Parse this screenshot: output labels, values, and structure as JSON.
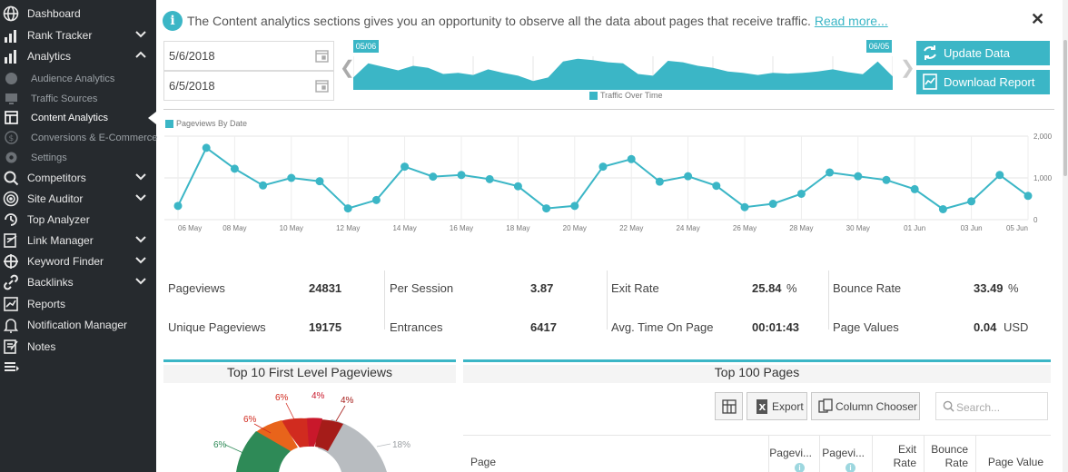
{
  "sidebar": {
    "items": [
      {
        "label": "Dashboard"
      },
      {
        "label": "Rank Tracker"
      },
      {
        "label": "Analytics"
      },
      {
        "label": "Audience Analytics"
      },
      {
        "label": "Traffic Sources"
      },
      {
        "label": "Content Analytics"
      },
      {
        "label": "Conversions & E-Commerce"
      },
      {
        "label": "Settings"
      },
      {
        "label": "Competitors"
      },
      {
        "label": "Site Auditor"
      },
      {
        "label": "Top Analyzer"
      },
      {
        "label": "Link Manager"
      },
      {
        "label": "Keyword Finder"
      },
      {
        "label": "Backlinks"
      },
      {
        "label": "Reports"
      },
      {
        "label": "Notification Manager"
      },
      {
        "label": "Notes"
      }
    ]
  },
  "notice": {
    "text": "The Content analytics sections gives you an opportunity to observe all the data about pages that receive traffic.",
    "link": "Read more...",
    "close": "✕"
  },
  "dates": {
    "start": "5/6/2018",
    "end": "6/5/2018"
  },
  "overview": {
    "start_flag": "05/06",
    "end_flag": "06/05",
    "legend": "Traffic Over Time"
  },
  "actions": {
    "update": "Update Data",
    "download": "Download Report"
  },
  "colors": {
    "accent": "#3bb6c6",
    "sidebar": "#262a2e",
    "pie_red": "#d12b1f",
    "pie_orange": "#e8641b",
    "pie_green": "#2e8a57",
    "pie_gray": "#b8bcc0"
  },
  "chart_data": {
    "type": "line",
    "legend": "Pageviews By Date",
    "x": [
      "06 May",
      "07 May",
      "08 May",
      "09 May",
      "10 May",
      "11 May",
      "12 May",
      "13 May",
      "14 May",
      "15 May",
      "16 May",
      "17 May",
      "18 May",
      "19 May",
      "20 May",
      "21 May",
      "22 May",
      "23 May",
      "24 May",
      "25 May",
      "26 May",
      "27 May",
      "28 May",
      "29 May",
      "30 May",
      "31 May",
      "01 Jun",
      "02 Jun",
      "03 Jun",
      "04 Jun",
      "05 Jun"
    ],
    "x_tick_labels": [
      "06 May",
      "08 May",
      "10 May",
      "12 May",
      "14 May",
      "16 May",
      "18 May",
      "20 May",
      "22 May",
      "24 May",
      "26 May",
      "28 May",
      "30 May",
      "01 Jun",
      "03 Jun",
      "05 Jun"
    ],
    "values": [
      330,
      1720,
      1220,
      820,
      1000,
      920,
      270,
      470,
      1270,
      1030,
      1070,
      970,
      800,
      270,
      330,
      1270,
      1450,
      910,
      1040,
      810,
      300,
      380,
      620,
      1130,
      1040,
      950,
      730,
      250,
      440,
      1070,
      570
    ],
    "ylim": [
      0,
      2000
    ],
    "y_ticks": [
      "2,000",
      "1,000",
      "0"
    ],
    "grid": true
  },
  "overview_data": {
    "values": [
      35,
      75,
      65,
      55,
      68,
      62,
      45,
      48,
      42,
      58,
      48,
      40,
      25,
      35,
      80,
      88,
      84,
      78,
      75,
      45,
      40,
      82,
      78,
      68,
      62,
      52,
      48,
      42,
      48,
      46,
      48,
      52,
      58,
      50,
      44,
      80,
      38
    ]
  },
  "stats": [
    {
      "label": "Pageviews",
      "value": "24831",
      "unit": ""
    },
    {
      "label": "Per Session",
      "value": "3.87",
      "unit": ""
    },
    {
      "label": "Exit Rate",
      "value": "25.84",
      "unit": "%"
    },
    {
      "label": "Bounce Rate",
      "value": "33.49",
      "unit": "%"
    },
    {
      "label": "Unique Pageviews",
      "value": "19175",
      "unit": ""
    },
    {
      "label": "Entrances",
      "value": "6417",
      "unit": ""
    },
    {
      "label": "Avg. Time On Page",
      "value": "00:01:43",
      "unit": ""
    },
    {
      "label": "Page Values",
      "value": "0.04",
      "unit": "USD"
    }
  ],
  "pie": {
    "title": "Top 10 First Level Pageviews",
    "labels": [
      "6%",
      "6%",
      "6%",
      "4%",
      "4%",
      "18%"
    ]
  },
  "table": {
    "title": "Top 100 Pages",
    "export": "Export",
    "column_chooser": "Column Chooser",
    "search_placeholder": "Search...",
    "headers": {
      "page": "Page",
      "pageviews": "Pagevi...",
      "unique": "Pagevi...",
      "exit1": "Exit",
      "exit2": "Rate",
      "bounce1": "Bounce",
      "bounce2": "Rate",
      "value": "Page Value"
    }
  }
}
